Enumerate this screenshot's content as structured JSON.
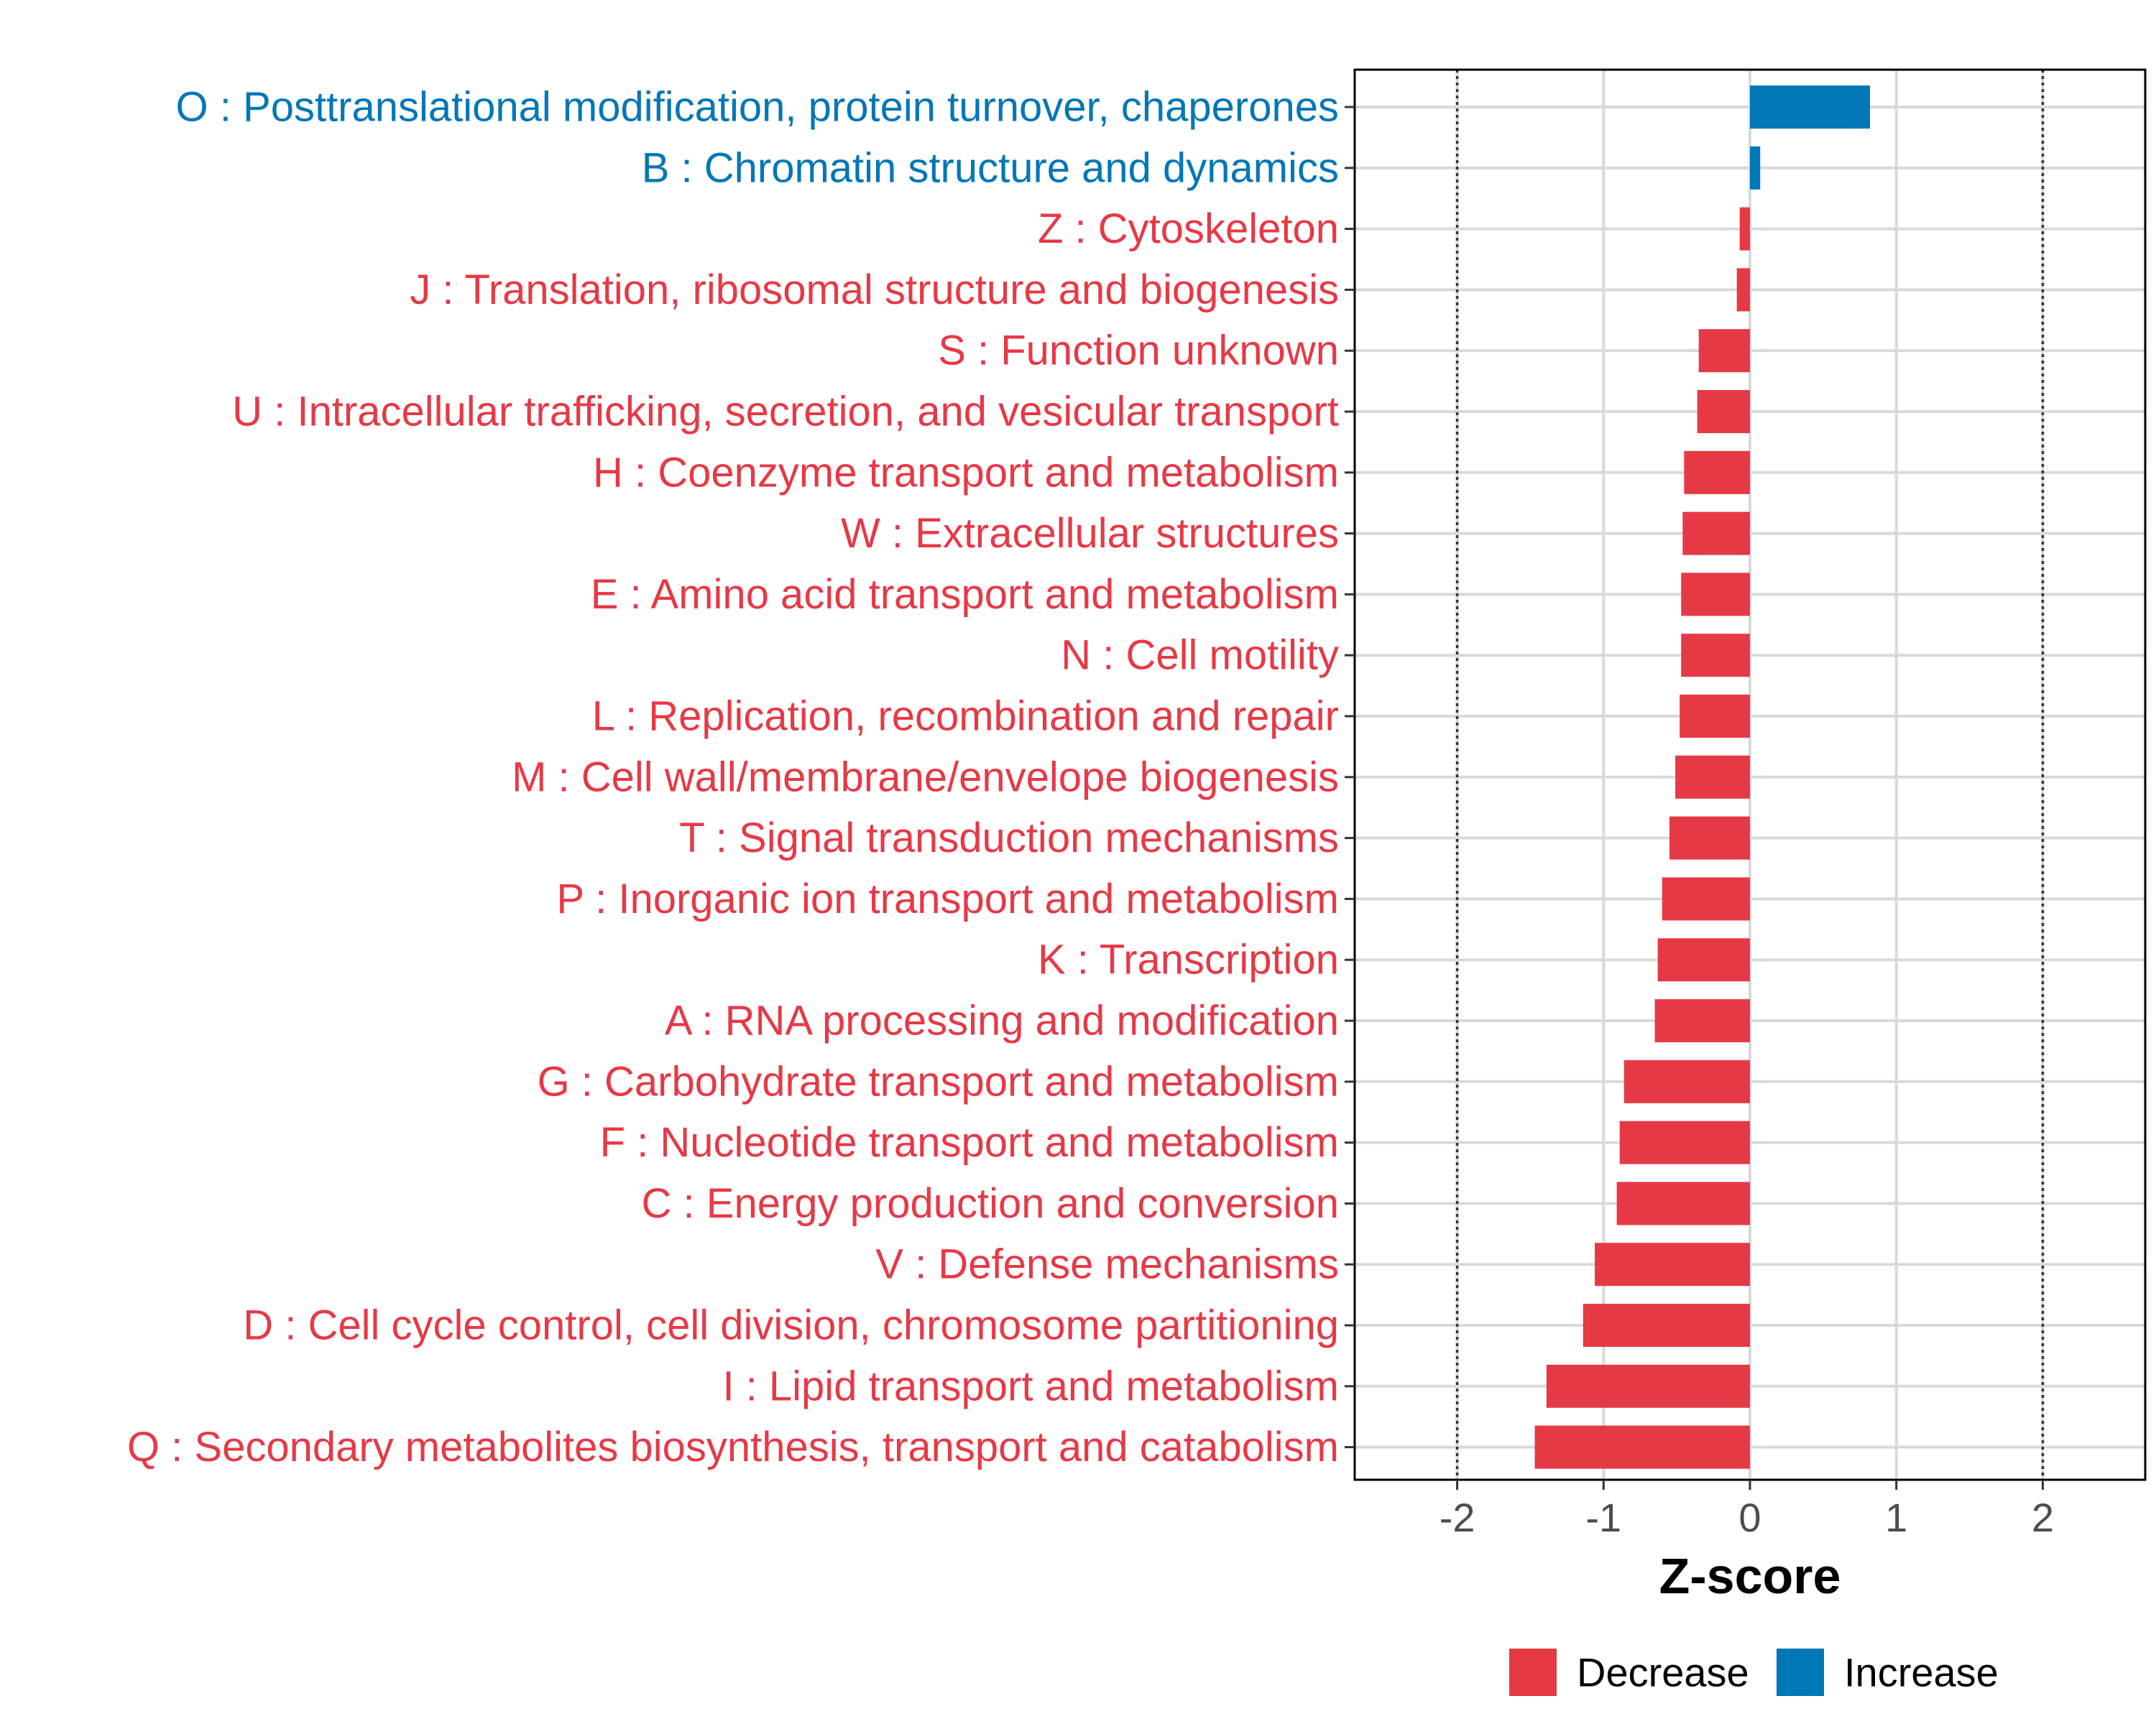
{
  "chart_data": {
    "type": "bar",
    "orientation": "horizontal",
    "xlabel": "Z-score",
    "xlim": [
      -2.7,
      2.7
    ],
    "xticks": [
      -2,
      -1,
      0,
      1,
      2
    ],
    "xtick_labels": [
      "-2",
      "-1",
      "0",
      "1",
      "2"
    ],
    "reference_lines": [
      -2,
      2
    ],
    "grid": true,
    "categories": [
      "O : Posttranslational modification, protein turnover, chaperones",
      "B : Chromatin structure and dynamics",
      "Z : Cytoskeleton",
      "J : Translation, ribosomal structure and biogenesis",
      "S : Function unknown",
      "U : Intracellular trafficking, secretion, and vesicular transport",
      "H : Coenzyme transport and metabolism",
      "W : Extracellular structures",
      "E : Amino acid transport and metabolism",
      "N : Cell motility",
      "L : Replication, recombination and repair",
      "M : Cell wall/membrane/envelope biogenesis",
      "T : Signal transduction mechanisms",
      "P : Inorganic ion transport and metabolism",
      "K : Transcription",
      "A : RNA processing and modification",
      "G : Carbohydrate transport and metabolism",
      "F : Nucleotide transport and metabolism",
      "C : Energy production and conversion",
      "V : Defense mechanisms",
      "D : Cell cycle control, cell division, chromosome partitioning",
      "I : Lipid transport and metabolism",
      "Q : Secondary metabolites biosynthesis, transport and catabolism"
    ],
    "values": [
      0.82,
      0.07,
      -0.07,
      -0.09,
      -0.35,
      -0.36,
      -0.45,
      -0.46,
      -0.47,
      -0.47,
      -0.48,
      -0.51,
      -0.55,
      -0.6,
      -0.63,
      -0.65,
      -0.86,
      -0.89,
      -0.91,
      -1.06,
      -1.14,
      -1.39,
      -1.47
    ],
    "groups": [
      "Increase",
      "Increase",
      "Decrease",
      "Decrease",
      "Decrease",
      "Decrease",
      "Decrease",
      "Decrease",
      "Decrease",
      "Decrease",
      "Decrease",
      "Decrease",
      "Decrease",
      "Decrease",
      "Decrease",
      "Decrease",
      "Decrease",
      "Decrease",
      "Decrease",
      "Decrease",
      "Decrease",
      "Decrease",
      "Decrease"
    ],
    "legend": {
      "position": "bottom",
      "entries": [
        {
          "label": "Decrease",
          "color": "#E63946"
        },
        {
          "label": "Increase",
          "color": "#0077B6"
        }
      ]
    },
    "colors": {
      "Decrease": "#E63946",
      "Increase": "#0077B6"
    }
  }
}
